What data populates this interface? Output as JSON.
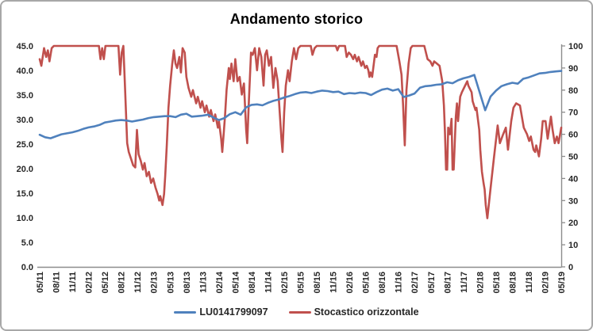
{
  "chart_data": {
    "type": "line",
    "title": "Andamento storico",
    "legend_position": "bottom",
    "grid": false,
    "axis_color": "#8C8C8C",
    "left_axis": {
      "min": 0,
      "max": 45,
      "step": 5,
      "tick_labels": [
        "0.0",
        "5.0",
        "10.0",
        "15.0",
        "20.0",
        "25.0",
        "30.0",
        "35.0",
        "40.0",
        "45.0"
      ]
    },
    "right_axis": {
      "min": 0,
      "max": 100,
      "step": 10,
      "tick_labels": [
        "0",
        "10",
        "20",
        "30",
        "40",
        "50",
        "60",
        "70",
        "80",
        "90",
        "100"
      ]
    },
    "x_axis": {
      "unit": "months from 05/2011, tick every 3 months",
      "months_total": 96,
      "tick_labels": [
        "05/11",
        "08/11",
        "11/11",
        "02/12",
        "05/12",
        "08/12",
        "11/12",
        "02/13",
        "05/13",
        "08/13",
        "11/13",
        "02/14",
        "05/14",
        "08/14",
        "11/14",
        "02/15",
        "05/15",
        "08/15",
        "11/15",
        "02/16",
        "05/16",
        "08/16",
        "11/16",
        "02/17",
        "05/17",
        "08/17",
        "11/17",
        "02/18",
        "05/18",
        "08/18",
        "11/18",
        "02/19",
        "05/19"
      ]
    },
    "series": [
      {
        "name": "LU0141799097",
        "axis": "left",
        "color": "#4F81BD",
        "x_step_months": 1,
        "values": [
          26.9,
          26.4,
          26.2,
          26.6,
          27.0,
          27.2,
          27.4,
          27.7,
          28.1,
          28.4,
          28.6,
          28.9,
          29.4,
          29.6,
          29.8,
          29.9,
          29.8,
          29.6,
          29.8,
          30.0,
          30.3,
          30.5,
          30.6,
          30.7,
          30.7,
          30.5,
          31.0,
          31.2,
          30.6,
          30.7,
          30.8,
          31.0,
          30.4,
          29.9,
          30.3,
          31.1,
          31.5,
          31.0,
          32.5,
          33.0,
          33.1,
          32.9,
          33.4,
          33.8,
          34.1,
          34.5,
          34.8,
          35.2,
          35.5,
          35.6,
          35.4,
          35.7,
          35.9,
          35.8,
          35.6,
          35.7,
          35.2,
          35.4,
          35.3,
          35.5,
          35.4,
          35.0,
          35.6,
          36.1,
          36.3,
          35.9,
          36.2,
          34.6,
          34.9,
          35.3,
          36.5,
          36.8,
          36.9,
          37.1,
          37.2,
          37.6,
          37.4,
          38.0,
          38.4,
          38.7,
          39.1,
          35.5,
          31.9,
          34.7,
          35.9,
          36.8,
          37.2,
          37.5,
          37.3,
          38.3,
          38.6,
          39.0,
          39.4,
          39.5,
          39.7,
          39.8,
          39.9
        ]
      },
      {
        "name": "Stocastico orizzontale",
        "axis": "right",
        "color": "#C0504D",
        "points": [
          [
            0,
            94
          ],
          [
            0.3,
            91
          ],
          [
            0.8,
            99
          ],
          [
            1.2,
            95
          ],
          [
            1.5,
            98
          ],
          [
            1.8,
            93
          ],
          [
            2.2,
            99
          ],
          [
            2.6,
            100
          ],
          [
            10.9,
            100
          ],
          [
            11.2,
            94
          ],
          [
            11.5,
            99
          ],
          [
            11.8,
            94
          ],
          [
            12.1,
            100
          ],
          [
            14.5,
            100
          ],
          [
            14.8,
            87
          ],
          [
            15.1,
            97
          ],
          [
            15.4,
            100
          ],
          [
            15.7,
            82
          ],
          [
            16.1,
            56
          ],
          [
            16.4,
            52
          ],
          [
            16.8,
            49
          ],
          [
            17.2,
            46
          ],
          [
            17.6,
            45
          ],
          [
            17.9,
            62
          ],
          [
            18.2,
            51
          ],
          [
            18.6,
            48
          ],
          [
            19,
            44
          ],
          [
            19.3,
            47
          ],
          [
            19.7,
            41
          ],
          [
            20.1,
            43
          ],
          [
            20.5,
            38
          ],
          [
            20.9,
            40
          ],
          [
            21.3,
            36
          ],
          [
            21.7,
            33
          ],
          [
            22,
            30
          ],
          [
            22.2,
            32
          ],
          [
            22.6,
            28
          ],
          [
            22.9,
            33
          ],
          [
            23.1,
            41
          ],
          [
            23.4,
            55
          ],
          [
            23.7,
            72
          ],
          [
            24,
            82
          ],
          [
            24.4,
            92
          ],
          [
            24.7,
            98
          ],
          [
            25,
            92
          ],
          [
            25.3,
            90
          ],
          [
            25.7,
            95
          ],
          [
            26,
            88
          ],
          [
            26.3,
            99
          ],
          [
            26.7,
            97
          ],
          [
            27,
            86
          ],
          [
            27.4,
            81
          ],
          [
            27.9,
            77
          ],
          [
            28.2,
            80
          ],
          [
            28.8,
            74
          ],
          [
            29.1,
            77
          ],
          [
            29.6,
            72
          ],
          [
            29.9,
            75
          ],
          [
            30.4,
            70
          ],
          [
            30.7,
            73
          ],
          [
            31.2,
            68
          ],
          [
            31.5,
            71
          ],
          [
            32,
            66
          ],
          [
            32.3,
            69
          ],
          [
            32.8,
            63
          ],
          [
            33,
            66
          ],
          [
            33.4,
            58
          ],
          [
            33.6,
            52
          ],
          [
            33.8,
            58
          ],
          [
            34.1,
            68
          ],
          [
            34.4,
            80
          ],
          [
            34.8,
            90
          ],
          [
            35,
            85
          ],
          [
            35.3,
            92
          ],
          [
            35.7,
            84
          ],
          [
            36,
            94
          ],
          [
            36.4,
            84
          ],
          [
            36.8,
            86
          ],
          [
            37.2,
            78
          ],
          [
            37.6,
            83
          ],
          [
            38,
            62
          ],
          [
            38.2,
            56
          ],
          [
            38.5,
            75
          ],
          [
            38.9,
            97
          ],
          [
            39.2,
            96
          ],
          [
            39.6,
            99
          ],
          [
            40,
            89
          ],
          [
            40.4,
            99
          ],
          [
            40.8,
            95
          ],
          [
            41.2,
            82
          ],
          [
            41.5,
            96
          ],
          [
            41.8,
            98
          ],
          [
            42.2,
            91
          ],
          [
            42.6,
            95
          ],
          [
            43,
            81
          ],
          [
            43.4,
            90
          ],
          [
            43.8,
            84
          ],
          [
            44.1,
            73
          ],
          [
            44.5,
            58
          ],
          [
            44.7,
            52
          ],
          [
            45,
            70
          ],
          [
            45.3,
            82
          ],
          [
            45.7,
            89
          ],
          [
            46,
            84
          ],
          [
            46.4,
            93
          ],
          [
            46.8,
            99
          ],
          [
            47.2,
            94
          ],
          [
            47.6,
            99
          ],
          [
            48,
            100
          ],
          [
            49.9,
            100
          ],
          [
            50.2,
            96
          ],
          [
            50.6,
            99
          ],
          [
            51,
            100
          ],
          [
            54.5,
            100
          ],
          [
            54.8,
            98
          ],
          [
            55.1,
            100
          ],
          [
            56.2,
            100
          ],
          [
            56.5,
            95
          ],
          [
            56.9,
            97
          ],
          [
            57.3,
            96
          ],
          [
            57.7,
            94
          ],
          [
            58,
            96
          ],
          [
            58.4,
            93
          ],
          [
            58.7,
            95
          ],
          [
            59.2,
            91
          ],
          [
            59.5,
            93
          ],
          [
            59.9,
            90
          ],
          [
            60.2,
            91
          ],
          [
            60.5,
            89
          ],
          [
            60.7,
            86
          ],
          [
            60.9,
            88
          ],
          [
            61.2,
            86
          ],
          [
            61.7,
            96
          ],
          [
            62,
            95
          ],
          [
            62.2,
            99
          ],
          [
            62.5,
            100
          ],
          [
            65.7,
            100
          ],
          [
            66.2,
            93
          ],
          [
            66.6,
            87
          ],
          [
            66.9,
            73
          ],
          [
            67.2,
            55
          ],
          [
            67.5,
            80
          ],
          [
            67.9,
            92
          ],
          [
            68.3,
            99
          ],
          [
            68.6,
            100
          ],
          [
            70.8,
            100
          ],
          [
            71.4,
            94
          ],
          [
            71.9,
            93
          ],
          [
            72.3,
            91
          ],
          [
            72.6,
            93
          ],
          [
            73.1,
            92
          ],
          [
            73.6,
            91
          ],
          [
            74.1,
            84
          ],
          [
            74.4,
            73
          ],
          [
            74.6,
            61
          ],
          [
            74.8,
            44
          ],
          [
            75,
            44
          ],
          [
            75.2,
            63
          ],
          [
            75.5,
            60
          ],
          [
            75.8,
            67
          ],
          [
            76,
            44
          ],
          [
            76.2,
            44
          ],
          [
            76.6,
            68
          ],
          [
            76.8,
            74
          ],
          [
            77,
            66
          ],
          [
            77.4,
            77
          ],
          [
            77.7,
            79
          ],
          [
            78.1,
            81
          ],
          [
            78.7,
            84
          ],
          [
            78.9,
            82
          ],
          [
            79.5,
            79
          ],
          [
            79.7,
            75
          ],
          [
            80.2,
            71
          ],
          [
            80.4,
            72
          ],
          [
            80.6,
            68
          ],
          [
            80.9,
            62
          ],
          [
            81.1,
            53
          ],
          [
            81.4,
            43
          ],
          [
            81.7,
            38
          ],
          [
            81.9,
            35
          ],
          [
            82.1,
            28
          ],
          [
            82.4,
            22
          ],
          [
            83.1,
            38
          ],
          [
            83.6,
            49
          ],
          [
            84.3,
            64
          ],
          [
            84.7,
            56
          ],
          [
            85.3,
            60
          ],
          [
            85.8,
            63
          ],
          [
            86.2,
            53
          ],
          [
            86.8,
            66
          ],
          [
            87.2,
            72
          ],
          [
            87.7,
            74
          ],
          [
            88.4,
            73
          ],
          [
            89.1,
            63
          ],
          [
            89.7,
            60
          ],
          [
            90.1,
            57
          ],
          [
            90.4,
            59
          ],
          [
            90.9,
            53
          ],
          [
            91.2,
            52
          ],
          [
            91.4,
            55
          ],
          [
            91.9,
            50
          ],
          [
            92.3,
            58
          ],
          [
            92.6,
            66
          ],
          [
            93.1,
            66
          ],
          [
            93.5,
            58
          ],
          [
            94.1,
            68
          ],
          [
            94.4,
            62
          ],
          [
            94.8,
            56
          ],
          [
            95.2,
            59
          ],
          [
            95.5,
            56
          ],
          [
            96,
            63
          ]
        ]
      }
    ]
  }
}
